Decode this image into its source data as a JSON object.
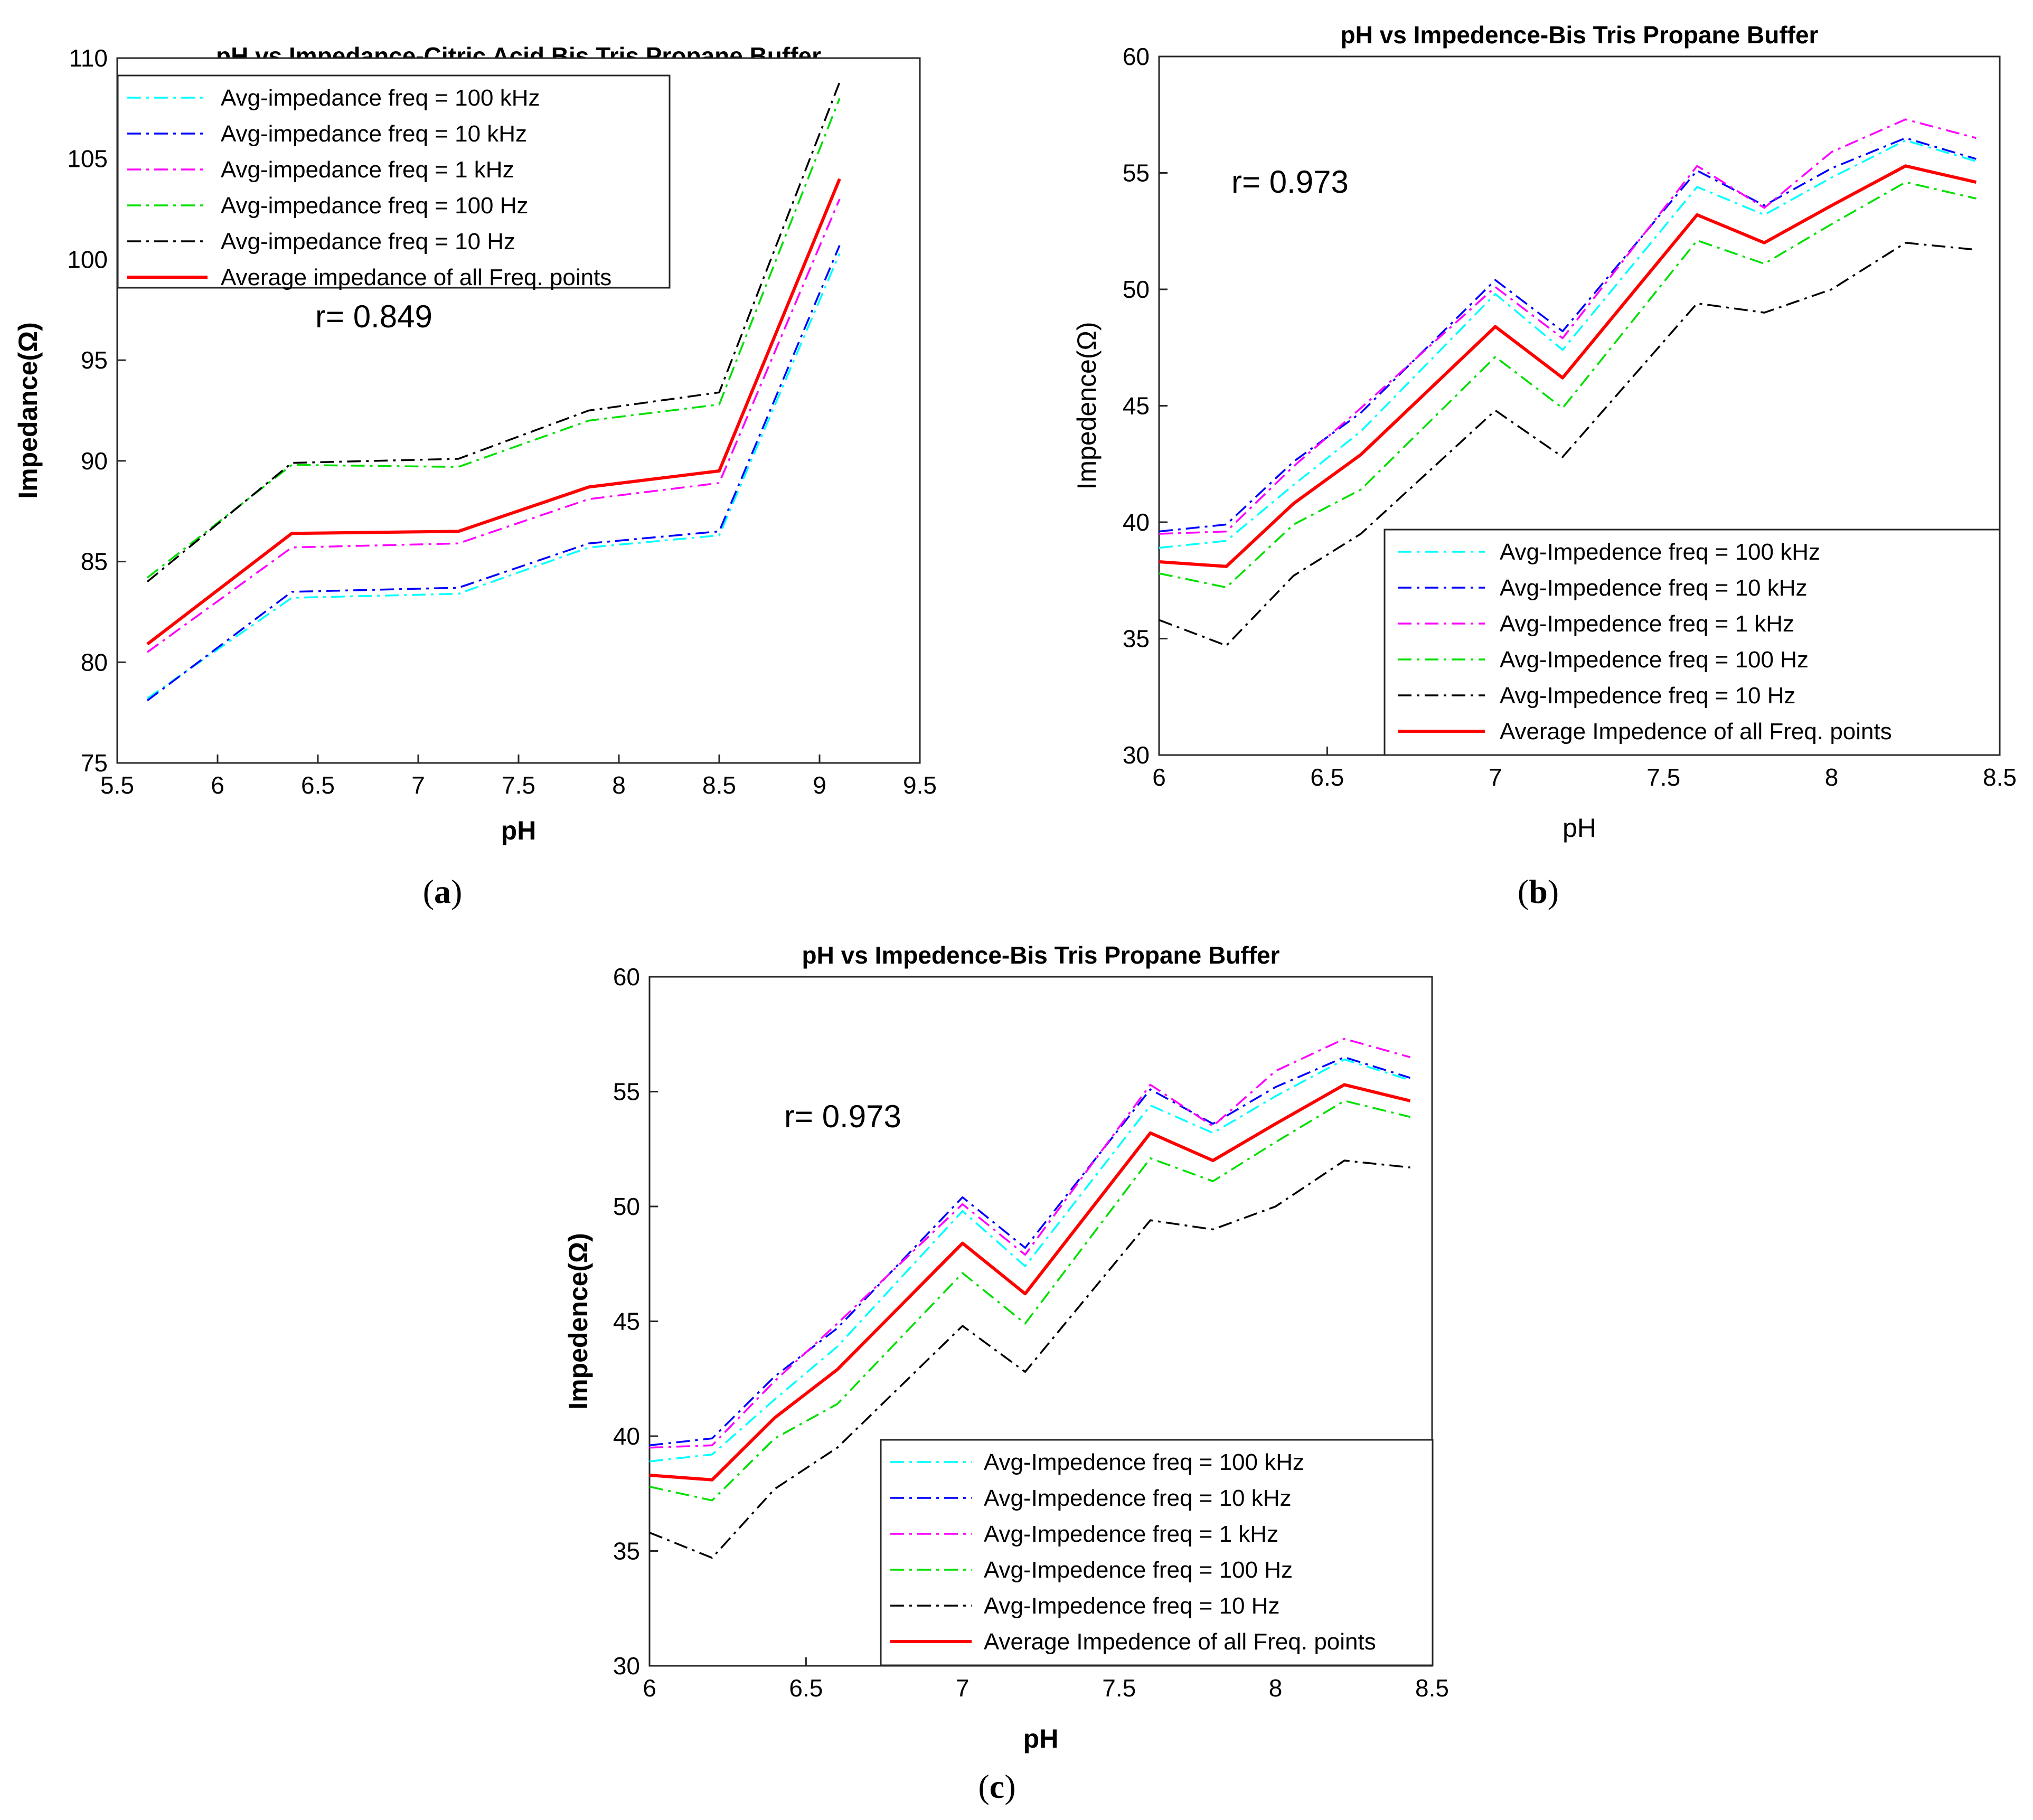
{
  "chart_data": [
    {
      "type": "line",
      "panel": "a",
      "caption_letter": "a",
      "title": "pH vs Impedance-Citric Acid Bis Tris Propane Buffer",
      "xlabel": "pH",
      "ylabel": "Impedance(Ω)",
      "xlim": [
        5.5,
        9.5
      ],
      "ylim": [
        75,
        110
      ],
      "xticks": [
        5.5,
        6,
        6.5,
        7,
        7.5,
        8,
        8.5,
        9,
        9.5
      ],
      "yticks": [
        75,
        80,
        85,
        90,
        95,
        100,
        105,
        110
      ],
      "xtick_labels": [
        "5.5",
        "6",
        "6.5",
        "7",
        "7.5",
        "8",
        "8.5",
        "9",
        "9.5"
      ],
      "ytick_labels": [
        "75",
        "80",
        "85",
        "90",
        "95",
        "100",
        "105",
        "110"
      ],
      "annotation": "r= 0.849",
      "legend_position": "top-left",
      "x": [
        5.65,
        6.37,
        7.2,
        7.85,
        8.5,
        9.1
      ],
      "series": [
        {
          "name": "Avg-impedance freq = 100 kHz",
          "color": "#00ffff",
          "style": "dashdot",
          "values": [
            78.2,
            83.2,
            83.4,
            85.7,
            86.3,
            100.3
          ]
        },
        {
          "name": "Avg-impedance freq = 10 kHz",
          "color": "#0000ff",
          "style": "dashdot",
          "values": [
            78.1,
            83.5,
            83.7,
            85.9,
            86.5,
            100.7
          ]
        },
        {
          "name": "Avg-impedance freq = 1 kHz",
          "color": "#ff00ff",
          "style": "dashdot",
          "values": [
            80.5,
            85.7,
            85.9,
            88.1,
            88.9,
            103.0
          ]
        },
        {
          "name": "Avg-impedance freq = 100 Hz",
          "color": "#00e000",
          "style": "dashdot",
          "values": [
            84.2,
            89.8,
            89.7,
            92.0,
            92.8,
            108.0
          ]
        },
        {
          "name": "Avg-impedance freq = 10 Hz",
          "color": "#000000",
          "style": "dashdot",
          "values": [
            84.0,
            89.9,
            90.1,
            92.5,
            93.4,
            108.8
          ]
        },
        {
          "name": "Average impedance of all Freq. points",
          "color": "#ff0000",
          "style": "solid",
          "values": [
            80.9,
            86.4,
            86.5,
            88.7,
            89.5,
            104.0
          ]
        }
      ]
    },
    {
      "type": "line",
      "panel": "b",
      "caption_letter": "b",
      "title": "pH vs Impedence-Bis Tris Propane Buffer",
      "xlabel": "pH",
      "ylabel": "Impedence(Ω)",
      "xlim": [
        6,
        8.5
      ],
      "ylim": [
        30,
        60
      ],
      "xticks": [
        6,
        6.5,
        7,
        7.5,
        8,
        8.5
      ],
      "yticks": [
        30,
        35,
        40,
        45,
        50,
        55,
        60
      ],
      "xtick_labels": [
        "6",
        "6.5",
        "7",
        "7.5",
        "8",
        "8.5"
      ],
      "ytick_labels": [
        "30",
        "35",
        "40",
        "45",
        "50",
        "55",
        "60"
      ],
      "annotation": "r= 0.973",
      "legend_position": "bottom-right",
      "x": [
        6.0,
        6.2,
        6.4,
        6.6,
        7.0,
        7.2,
        7.6,
        7.8,
        8.0,
        8.22,
        8.43
      ],
      "series": [
        {
          "name": "Avg-Impedence freq = 100 kHz",
          "color": "#00ffff",
          "style": "dashdot",
          "values": [
            38.9,
            39.2,
            41.6,
            43.9,
            49.8,
            47.4,
            54.4,
            53.2,
            54.8,
            56.4,
            55.5
          ]
        },
        {
          "name": "Avg-Impedence freq = 10 kHz",
          "color": "#0000ff",
          "style": "dashdot",
          "values": [
            39.6,
            39.9,
            42.6,
            44.7,
            50.4,
            48.2,
            55.1,
            53.6,
            55.2,
            56.5,
            55.6
          ]
        },
        {
          "name": "Avg-Impedence freq = 1 kHz",
          "color": "#ff00ff",
          "style": "dashdot",
          "values": [
            39.5,
            39.6,
            42.4,
            44.9,
            50.1,
            47.9,
            55.3,
            53.5,
            55.9,
            57.3,
            56.5
          ]
        },
        {
          "name": "Avg-Impedence freq = 100 Hz",
          "color": "#00e000",
          "style": "dashdot",
          "values": [
            37.8,
            37.2,
            39.9,
            41.4,
            47.1,
            44.9,
            52.1,
            51.1,
            52.8,
            54.6,
            53.9
          ]
        },
        {
          "name": "Avg-Impedence freq = 10 Hz",
          "color": "#000000",
          "style": "dashdot",
          "values": [
            35.8,
            34.7,
            37.7,
            39.5,
            44.8,
            42.8,
            49.4,
            49.0,
            50.0,
            52.0,
            51.7
          ]
        },
        {
          "name": "Average Impedence of all Freq. points",
          "color": "#ff0000",
          "style": "solid",
          "values": [
            38.3,
            38.1,
            40.8,
            42.9,
            48.4,
            46.2,
            53.2,
            52.0,
            53.6,
            55.3,
            54.6
          ]
        }
      ]
    },
    {
      "type": "line",
      "panel": "c",
      "caption_letter": "c",
      "title": "pH vs Impedence-Bis Tris Propane Buffer",
      "xlabel": "pH",
      "ylabel": "Impedence(Ω)",
      "xlim": [
        6,
        8.5
      ],
      "ylim": [
        30,
        60
      ],
      "xticks": [
        6,
        6.5,
        7,
        7.5,
        8,
        8.5
      ],
      "yticks": [
        30,
        35,
        40,
        45,
        50,
        55,
        60
      ],
      "xtick_labels": [
        "6",
        "6.5",
        "7",
        "7.5",
        "8",
        "8.5"
      ],
      "ytick_labels": [
        "30",
        "35",
        "40",
        "45",
        "50",
        "55",
        "60"
      ],
      "annotation": "r= 0.973",
      "legend_position": "bottom-right",
      "x": [
        6.0,
        6.2,
        6.4,
        6.6,
        7.0,
        7.2,
        7.6,
        7.8,
        8.0,
        8.22,
        8.43
      ],
      "series": [
        {
          "name": "Avg-Impedence freq = 100 kHz",
          "color": "#00ffff",
          "style": "dashdot",
          "values": [
            38.9,
            39.2,
            41.6,
            43.9,
            49.8,
            47.4,
            54.4,
            53.2,
            54.8,
            56.4,
            55.5
          ]
        },
        {
          "name": "Avg-Impedence freq = 10 kHz",
          "color": "#0000ff",
          "style": "dashdot",
          "values": [
            39.6,
            39.9,
            42.6,
            44.7,
            50.4,
            48.2,
            55.1,
            53.6,
            55.2,
            56.5,
            55.6
          ]
        },
        {
          "name": "Avg-Impedence freq = 1 kHz",
          "color": "#ff00ff",
          "style": "dashdot",
          "values": [
            39.5,
            39.6,
            42.4,
            44.9,
            50.1,
            47.9,
            55.3,
            53.5,
            55.9,
            57.3,
            56.5
          ]
        },
        {
          "name": "Avg-Impedence freq = 100 Hz",
          "color": "#00e000",
          "style": "dashdot",
          "values": [
            37.8,
            37.2,
            39.9,
            41.4,
            47.1,
            44.9,
            52.1,
            51.1,
            52.8,
            54.6,
            53.9
          ]
        },
        {
          "name": "Avg-Impedence freq = 10 Hz",
          "color": "#000000",
          "style": "dashdot",
          "values": [
            35.8,
            34.7,
            37.7,
            39.5,
            44.8,
            42.8,
            49.4,
            49.0,
            50.0,
            52.0,
            51.7
          ]
        },
        {
          "name": "Average Impedence of all Freq. points",
          "color": "#ff0000",
          "style": "solid",
          "values": [
            38.3,
            38.1,
            40.8,
            42.9,
            48.4,
            46.2,
            53.2,
            52.0,
            53.6,
            55.3,
            54.6
          ]
        }
      ]
    }
  ]
}
